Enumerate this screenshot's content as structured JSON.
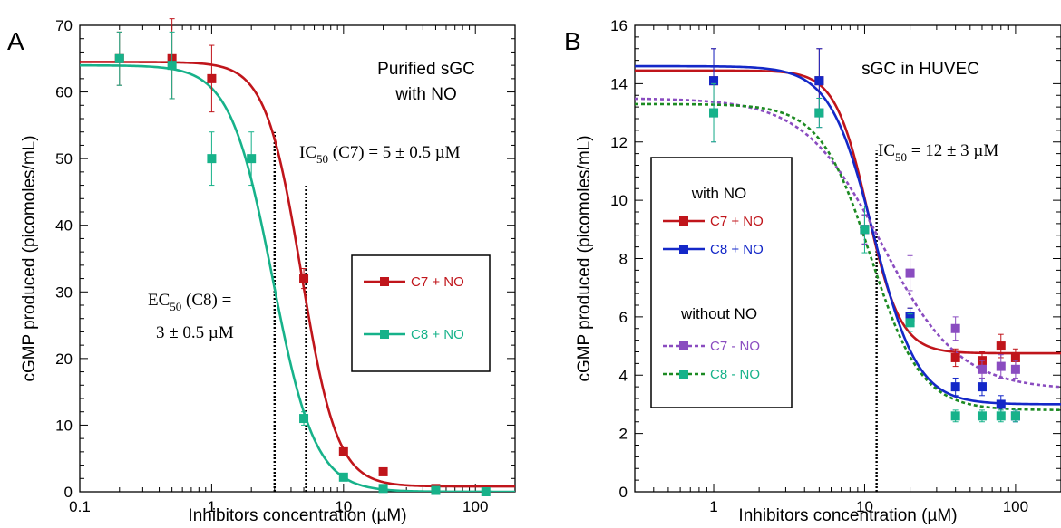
{
  "chart_data": [
    {
      "id": "A",
      "type": "scatter",
      "panel_letter": "A",
      "xlabel": "Inhibitors concentration  (µM)",
      "ylabel": "cGMP produced  (picomoles/mL)",
      "xscale": "log",
      "xlim": [
        0.1,
        200
      ],
      "ylim": [
        0,
        70
      ],
      "x_ticks": [
        0.1,
        1,
        10,
        100
      ],
      "x_tick_labels": [
        "0.1",
        "1",
        "10",
        "100"
      ],
      "y_ticks": [
        0,
        10,
        20,
        30,
        40,
        50,
        60,
        70
      ],
      "y_tick_labels": [
        "0",
        "10",
        "20",
        "30",
        "40",
        "50",
        "60",
        "70"
      ],
      "title_lines": [
        "Purified sGC",
        "with NO"
      ],
      "ic50_label": {
        "prefix": "IC",
        "sub": "50",
        "suffix": " (C7) = 5 ± 0.5 µM"
      },
      "ec50_label": {
        "line1_prefix": "EC",
        "line1_sub": "50",
        "line1_suffix": " (C8) =",
        "line2": "3 ± 0.5 µM"
      },
      "vlines": [
        3,
        5.2
      ],
      "legend_position": "center-right",
      "series": [
        {
          "name": "C7 + NO",
          "color": "#c0151b",
          "dashed": false,
          "x": [
            0.2,
            0.5,
            1,
            5,
            10,
            20,
            50
          ],
          "y": [
            65,
            65,
            62,
            32,
            6,
            3,
            0.5
          ],
          "err": [
            4,
            6,
            5,
            1.5,
            0.5,
            0.5,
            0.3
          ],
          "fit": {
            "top": 64.5,
            "bottom": 0.8,
            "ec50": 4.8,
            "hill": 3.2
          }
        },
        {
          "name": "C8 + NO",
          "color": "#17b28a",
          "dashed": false,
          "x": [
            0.2,
            0.5,
            1,
            2,
            5,
            10,
            20,
            50,
            120
          ],
          "y": [
            65,
            64,
            50,
            50,
            11,
            2.2,
            0.5,
            0.2,
            0
          ],
          "err": [
            4,
            5,
            4,
            4,
            1,
            0.5,
            0.3,
            0.2,
            0
          ],
          "fit": {
            "top": 64,
            "bottom": 0,
            "ec50": 2.9,
            "hill": 2.7
          }
        }
      ]
    },
    {
      "id": "B",
      "type": "scatter",
      "panel_letter": "B",
      "xlabel": "Inhibitors concentration  (µM)",
      "ylabel": "cGMP produced  (picomoles/mL)",
      "xscale": "log",
      "xlim": [
        0.3,
        200
      ],
      "ylim": [
        0,
        16
      ],
      "x_ticks": [
        1,
        10,
        100
      ],
      "x_tick_labels": [
        "1",
        "10",
        "100"
      ],
      "y_ticks": [
        0,
        2,
        4,
        6,
        8,
        10,
        12,
        14,
        16
      ],
      "y_tick_labels": [
        "0",
        "2",
        "4",
        "6",
        "8",
        "10",
        "12",
        "14",
        "16"
      ],
      "title_lines": [
        "sGC in HUVEC"
      ],
      "ic50_label": {
        "prefix": "IC",
        "sub": "50",
        "suffix": " = 12 ± 3 µM"
      },
      "vlines": [
        12
      ],
      "legend_position": "left",
      "legend_group_with": "with NO",
      "legend_group_without": "without NO",
      "series": [
        {
          "name": "C7 + NO",
          "color": "#c0151b",
          "dashed": false,
          "x": [
            1,
            5,
            10,
            20,
            40,
            60,
            80,
            100
          ],
          "y": [
            14.1,
            14.1,
            9,
            6,
            4.6,
            4.5,
            5,
            4.6
          ],
          "err": [
            1.1,
            1.1,
            0.5,
            0.3,
            0.3,
            0.3,
            0.4,
            0.3
          ],
          "fit": {
            "top": 14.45,
            "bottom": 4.75,
            "ec50": 10.5,
            "hill": 4
          }
        },
        {
          "name": "C8 + NO",
          "color": "#1428c8",
          "dashed": false,
          "x": [
            1,
            5,
            10,
            20,
            40,
            60,
            80,
            100
          ],
          "y": [
            14.1,
            14.1,
            9,
            6,
            3.6,
            3.6,
            3,
            2.6
          ],
          "err": [
            1.1,
            1.1,
            0.5,
            0.3,
            0.3,
            0.3,
            0.3,
            0.2
          ],
          "fit": {
            "top": 14.6,
            "bottom": 3,
            "ec50": 11.5,
            "hill": 3
          }
        },
        {
          "name": "C7 - NO",
          "color": "#8a4cc0",
          "dashed": true,
          "x": [
            1,
            5,
            10,
            20,
            40,
            60,
            80,
            100
          ],
          "y": [
            13,
            13,
            9,
            7.5,
            5.6,
            4.2,
            4.3,
            4.2
          ],
          "err": [
            1,
            0.5,
            0.5,
            0.6,
            0.4,
            0.3,
            0.4,
            0.3
          ],
          "fit": {
            "top": 13.5,
            "bottom": 3.5,
            "ec50": 13,
            "hill": 1.7
          }
        },
        {
          "name": "C8 - NO",
          "color": "#1c8a22",
          "marker_color": "#17b28a",
          "dashed": true,
          "x": [
            1,
            5,
            10,
            20,
            40,
            60,
            80,
            100
          ],
          "y": [
            13,
            13,
            9,
            5.8,
            2.6,
            2.6,
            2.6,
            2.6
          ],
          "err": [
            1,
            0.5,
            0.8,
            0.3,
            0.2,
            0.2,
            0.2,
            0.2
          ],
          "fit": {
            "top": 13.3,
            "bottom": 2.8,
            "ec50": 11,
            "hill": 2.6
          }
        }
      ]
    }
  ]
}
